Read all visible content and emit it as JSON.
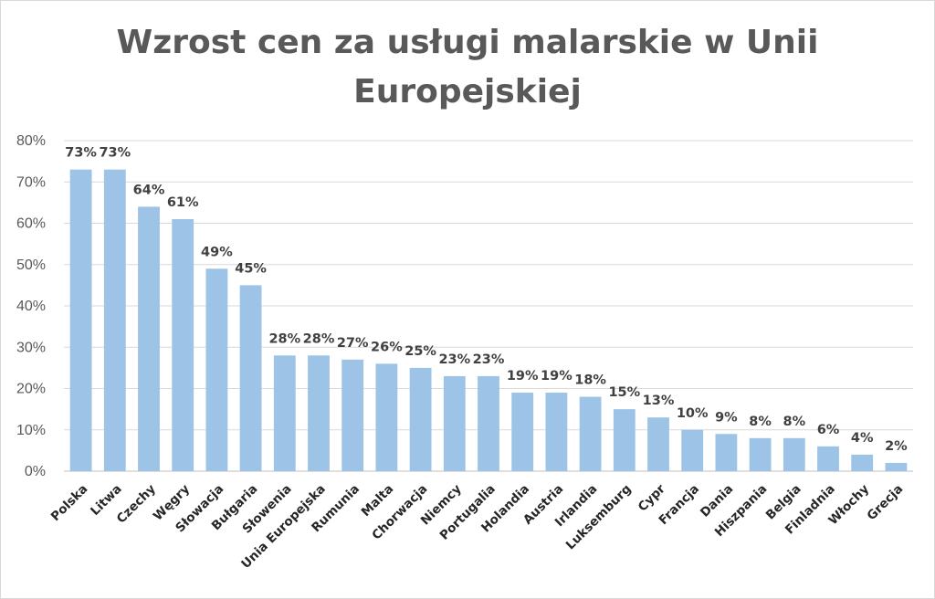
{
  "chart_data": {
    "type": "bar",
    "title_line1": "Wzrost cen za usługi malarskie w Unii",
    "title_line2": "Europejskiej",
    "categories": [
      "Polska",
      "Litwa",
      "Czechy",
      "Węgry",
      "Słowacja",
      "Bułgaria",
      "Słowenia",
      "Unia Europejska",
      "Rumunia",
      "Malta",
      "Chorwacja",
      "Niemcy",
      "Portugalia",
      "Holandia",
      "Austria",
      "Irlandia",
      "Luksemburg",
      "Cypr",
      "Francja",
      "Dania",
      "Hiszpania",
      "Belgia",
      "Finladnia",
      "Włochy",
      "Grecja"
    ],
    "values": [
      73,
      73,
      64,
      61,
      49,
      45,
      28,
      28,
      27,
      26,
      25,
      23,
      23,
      19,
      19,
      18,
      15,
      13,
      10,
      9,
      8,
      8,
      6,
      4,
      2
    ],
    "value_labels": [
      "73%",
      "73%",
      "64%",
      "61%",
      "49%",
      "45%",
      "28%",
      "28%",
      "27%",
      "26%",
      "25%",
      "23%",
      "23%",
      "19%",
      "19%",
      "18%",
      "15%",
      "13%",
      "10%",
      "9%",
      "8%",
      "8%",
      "6%",
      "4%",
      "2%"
    ],
    "highlight_label_category": "Unia Europejska",
    "y_ticks": [
      "0%",
      "10%",
      "20%",
      "30%",
      "40%",
      "50%",
      "60%",
      "70%",
      "80%"
    ],
    "ylim": [
      0,
      80
    ],
    "grid": true,
    "legend": "none",
    "colors": {
      "bar": "#9dc3e6",
      "highlight_label": "#ff0000",
      "grid": "#d9d9d9",
      "label": "#404040"
    }
  }
}
